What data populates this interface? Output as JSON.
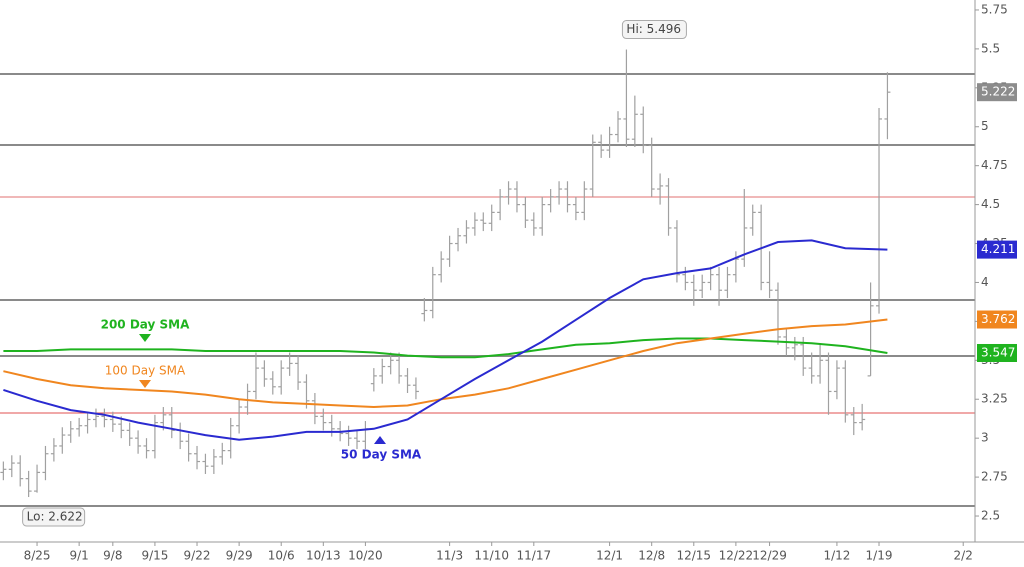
{
  "chart_data": {
    "type": "ohlc",
    "color": "#a0a0a0",
    "x": [
      -4,
      -3,
      -2,
      -1,
      0,
      1,
      2,
      3,
      4,
      5,
      6,
      7,
      8,
      9,
      10,
      11,
      12,
      13,
      14,
      15,
      16,
      17,
      18,
      19,
      20,
      21,
      22,
      23,
      24,
      25,
      26,
      27,
      28,
      29,
      30,
      31,
      32,
      33,
      34,
      35,
      36,
      37,
      38,
      39,
      40,
      41,
      42,
      43,
      44,
      45,
      46,
      47,
      48,
      49,
      50,
      51,
      52,
      53,
      54,
      55,
      56,
      57,
      58,
      59,
      60,
      61,
      62,
      63,
      64,
      65,
      66,
      67,
      68,
      69,
      70,
      71,
      72,
      73,
      74,
      75,
      76,
      77,
      78,
      79,
      80,
      81,
      82,
      83,
      84,
      85,
      86,
      87,
      88,
      89,
      90,
      91,
      92,
      93,
      94,
      95,
      96,
      97,
      98,
      99,
      100,
      101
    ],
    "open": [
      2.78,
      2.8,
      2.84,
      2.74,
      2.66,
      2.78,
      2.9,
      2.95,
      3.02,
      3.06,
      3.08,
      3.12,
      3.14,
      3.12,
      3.09,
      3.05,
      3.0,
      2.95,
      2.92,
      3.1,
      3.15,
      3.05,
      2.98,
      2.9,
      2.85,
      2.82,
      2.88,
      2.92,
      3.08,
      3.2,
      3.3,
      3.45,
      3.38,
      3.33,
      3.45,
      3.48,
      3.36,
      3.24,
      3.14,
      3.1,
      3.06,
      3.03,
      3.0,
      2.98,
      3.35,
      3.4,
      3.46,
      3.5,
      3.4,
      3.34,
      3.8,
      3.82,
      4.05,
      4.15,
      4.25,
      4.3,
      4.35,
      4.4,
      4.38,
      4.45,
      4.55,
      4.6,
      4.5,
      4.4,
      4.35,
      4.5,
      4.55,
      4.6,
      4.5,
      4.45,
      4.6,
      4.9,
      4.85,
      4.95,
      5.05,
      4.92,
      5.08,
      4.88,
      4.6,
      4.62,
      4.35,
      4.05,
      4.0,
      3.95,
      4.0,
      4.05,
      3.95,
      4.05,
      4.15,
      4.35,
      4.45,
      4.0,
      3.95,
      3.65,
      3.58,
      3.6,
      3.45,
      3.4,
      3.5,
      3.3,
      3.45,
      3.15,
      3.1,
      3.4,
      3.85,
      5.05
    ],
    "high": [
      2.85,
      2.89,
      2.89,
      2.79,
      2.83,
      2.95,
      3.0,
      3.07,
      3.11,
      3.13,
      3.17,
      3.19,
      3.19,
      3.17,
      3.14,
      3.1,
      3.05,
      3.0,
      3.15,
      3.2,
      3.2,
      3.1,
      3.03,
      2.95,
      2.9,
      2.93,
      2.97,
      3.13,
      3.25,
      3.35,
      3.55,
      3.5,
      3.43,
      3.5,
      3.55,
      3.53,
      3.41,
      3.29,
      3.19,
      3.15,
      3.11,
      3.08,
      3.05,
      3.11,
      3.45,
      3.51,
      3.55,
      3.55,
      3.45,
      3.39,
      3.9,
      4.1,
      4.2,
      4.3,
      4.35,
      4.4,
      4.45,
      4.45,
      4.5,
      4.6,
      4.65,
      4.65,
      4.55,
      4.45,
      4.55,
      4.6,
      4.65,
      4.65,
      4.55,
      4.65,
      4.95,
      4.95,
      5.0,
      5.1,
      5.496,
      5.2,
      5.13,
      4.93,
      4.7,
      4.67,
      4.4,
      4.1,
      4.05,
      4.05,
      4.1,
      4.1,
      4.1,
      4.2,
      4.6,
      4.5,
      4.5,
      4.2,
      4.0,
      3.7,
      3.65,
      3.65,
      3.55,
      3.6,
      3.55,
      3.5,
      3.5,
      3.2,
      3.22,
      4.0,
      5.12,
      5.35
    ],
    "low": [
      2.73,
      2.75,
      2.69,
      2.622,
      2.65,
      2.73,
      2.85,
      2.9,
      2.97,
      3.01,
      3.03,
      3.07,
      3.07,
      3.04,
      3.0,
      2.95,
      2.9,
      2.87,
      2.87,
      3.05,
      3.0,
      2.93,
      2.85,
      2.8,
      2.77,
      2.77,
      2.83,
      2.87,
      3.03,
      3.15,
      3.25,
      3.33,
      3.28,
      3.28,
      3.4,
      3.31,
      3.19,
      3.09,
      3.05,
      3.01,
      2.98,
      2.95,
      2.93,
      2.93,
      3.3,
      3.35,
      3.41,
      3.35,
      3.29,
      3.25,
      3.75,
      3.77,
      4.0,
      4.1,
      4.2,
      4.25,
      4.3,
      4.33,
      4.33,
      4.4,
      4.5,
      4.45,
      4.35,
      4.3,
      4.3,
      4.45,
      4.5,
      4.45,
      4.4,
      4.4,
      4.55,
      4.8,
      4.8,
      4.9,
      4.87,
      4.87,
      4.83,
      4.55,
      4.5,
      4.3,
      4.0,
      3.95,
      3.85,
      3.9,
      3.95,
      3.85,
      3.9,
      4.0,
      4.1,
      4.3,
      3.95,
      3.9,
      3.6,
      3.53,
      3.5,
      3.4,
      3.35,
      3.35,
      3.15,
      3.25,
      3.1,
      3.02,
      3.05,
      3.4,
      3.8,
      4.92
    ],
    "close": [
      2.8,
      2.84,
      2.74,
      2.66,
      2.78,
      2.9,
      2.95,
      3.02,
      3.06,
      3.08,
      3.12,
      3.14,
      3.12,
      3.09,
      3.05,
      3.0,
      2.95,
      2.92,
      3.1,
      3.15,
      3.05,
      2.98,
      2.9,
      2.85,
      2.82,
      2.88,
      2.92,
      3.08,
      3.2,
      3.3,
      3.45,
      3.38,
      3.33,
      3.45,
      3.48,
      3.36,
      3.24,
      3.14,
      3.1,
      3.06,
      3.03,
      3.0,
      2.98,
      3.06,
      3.4,
      3.46,
      3.5,
      3.4,
      3.34,
      3.3,
      3.82,
      4.05,
      4.15,
      4.25,
      4.3,
      4.35,
      4.4,
      4.38,
      4.45,
      4.55,
      4.6,
      4.5,
      4.4,
      4.35,
      4.5,
      4.55,
      4.6,
      4.5,
      4.45,
      4.6,
      4.9,
      4.85,
      4.95,
      5.05,
      4.92,
      5.08,
      4.88,
      4.6,
      4.62,
      4.35,
      4.05,
      4.0,
      3.95,
      4.0,
      4.05,
      3.95,
      4.05,
      4.15,
      4.35,
      4.45,
      4.0,
      3.95,
      3.65,
      3.58,
      3.6,
      3.45,
      3.4,
      3.5,
      3.3,
      3.45,
      3.15,
      3.1,
      3.12,
      3.85,
      5.05,
      5.222
    ],
    "sma": [
      {
        "name": "200 Day SMA",
        "color": "#1fb31f",
        "x": [
          -4,
          0,
          4,
          8,
          12,
          16,
          20,
          24,
          28,
          32,
          36,
          40,
          44,
          48,
          52,
          56,
          60,
          64,
          68,
          72,
          76,
          80,
          84,
          88,
          92,
          96,
          101
        ],
        "values": [
          3.56,
          3.56,
          3.57,
          3.57,
          3.57,
          3.57,
          3.56,
          3.56,
          3.56,
          3.56,
          3.56,
          3.55,
          3.53,
          3.52,
          3.52,
          3.54,
          3.57,
          3.6,
          3.61,
          3.63,
          3.64,
          3.64,
          3.63,
          3.62,
          3.61,
          3.59,
          3.547
        ]
      },
      {
        "name": "100 Day SMA",
        "color": "#f0861f",
        "x": [
          -4,
          0,
          4,
          8,
          12,
          16,
          20,
          24,
          28,
          32,
          36,
          40,
          44,
          48,
          52,
          56,
          60,
          64,
          68,
          72,
          76,
          80,
          84,
          88,
          92,
          96,
          101
        ],
        "values": [
          3.43,
          3.38,
          3.34,
          3.32,
          3.31,
          3.3,
          3.28,
          3.25,
          3.23,
          3.22,
          3.21,
          3.2,
          3.21,
          3.25,
          3.28,
          3.32,
          3.38,
          3.44,
          3.5,
          3.56,
          3.61,
          3.64,
          3.67,
          3.7,
          3.72,
          3.73,
          3.762
        ]
      },
      {
        "name": "50 Day SMA",
        "color": "#2a2ad0",
        "x": [
          -4,
          0,
          4,
          8,
          12,
          16,
          20,
          24,
          28,
          32,
          36,
          40,
          44,
          48,
          52,
          56,
          60,
          64,
          68,
          72,
          76,
          80,
          84,
          88,
          92,
          96,
          101
        ],
        "values": [
          3.31,
          3.24,
          3.18,
          3.15,
          3.1,
          3.06,
          3.02,
          2.99,
          3.01,
          3.04,
          3.04,
          3.06,
          3.12,
          3.25,
          3.38,
          3.5,
          3.62,
          3.76,
          3.9,
          4.02,
          4.06,
          4.09,
          4.18,
          4.26,
          4.27,
          4.22,
          4.211
        ]
      }
    ],
    "levels": [
      {
        "value": 5.339,
        "color": "#8a8a8a"
      },
      {
        "value": 4.883,
        "color": "#8a8a8a"
      },
      {
        "value": 4.549,
        "color": "#e07070"
      },
      {
        "value": 3.887,
        "color": "#8a8a8a"
      },
      {
        "value": 3.528,
        "color": "#8a8a8a"
      },
      {
        "value": 3.162,
        "color": "#e05050"
      },
      {
        "value": 2.564,
        "color": "#8a8a8a"
      }
    ],
    "annotations": [
      {
        "text": "Hi: 5.496"
      },
      {
        "text": "Lo: 2.622"
      }
    ],
    "xlim": [
      -4.4,
      111.4
    ],
    "ylim": [
      2.346,
      5.814
    ],
    "xticks": [
      {
        "value": 0,
        "label": "8/25"
      },
      {
        "value": 5,
        "label": "9/1"
      },
      {
        "value": 9,
        "label": "9/8"
      },
      {
        "value": 14,
        "label": "9/15"
      },
      {
        "value": 19,
        "label": "9/22"
      },
      {
        "value": 24,
        "label": "9/29"
      },
      {
        "value": 29,
        "label": "10/6"
      },
      {
        "value": 34,
        "label": "10/13"
      },
      {
        "value": 39,
        "label": "10/20"
      },
      {
        "value": 49,
        "label": "11/3"
      },
      {
        "value": 54,
        "label": "11/10"
      },
      {
        "value": 59,
        "label": "11/17"
      },
      {
        "value": 68,
        "label": "12/1"
      },
      {
        "value": 73,
        "label": "12/8"
      },
      {
        "value": 78,
        "label": "12/15"
      },
      {
        "value": 83,
        "label": "12/22"
      },
      {
        "value": 87,
        "label": "12/29"
      },
      {
        "value": 95,
        "label": "1/12"
      },
      {
        "value": 100,
        "label": "1/19"
      },
      {
        "value": 110,
        "label": "2/2"
      }
    ],
    "yticks": [
      2.5,
      2.75,
      3,
      3.25,
      3.5,
      3.75,
      4,
      4.25,
      4.5,
      4.75,
      5,
      5.25,
      5.5,
      5.75
    ]
  }
}
